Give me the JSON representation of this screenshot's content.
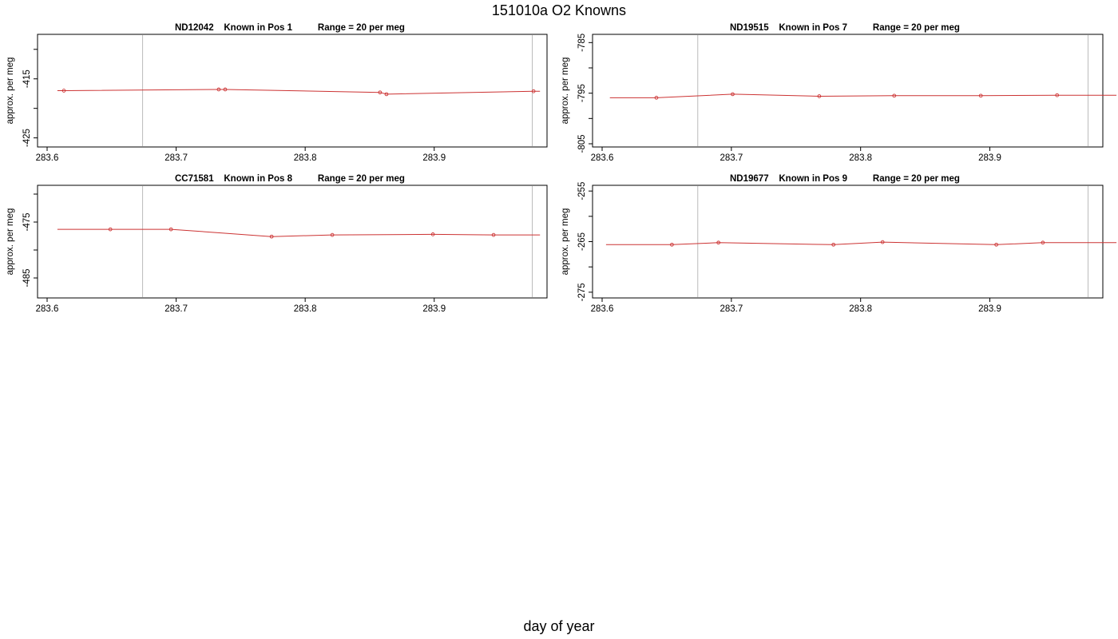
{
  "title": "151010a   O2 Knowns",
  "xlabel": "day of year",
  "colors": {
    "line": "#cc3333",
    "frame": "#000000",
    "vline": "#bbbbbb"
  },
  "chart_data": [
    {
      "type": "line",
      "title": "ND12042    Known in Pos 1          Range = 20 per meg",
      "ylabel": "approx. per meg",
      "xlim": [
        283.6,
        283.98
      ],
      "ylim": [
        -426,
        -408
      ],
      "xticks": [
        283.6,
        283.7,
        283.8,
        283.9
      ],
      "xtick_labels": [
        "283.6",
        "283.7",
        "283.8",
        "283.9"
      ],
      "yticks": [
        -410,
        -415,
        -420,
        -425
      ],
      "ytick_labels": [
        "",
        "-415",
        "",
        "-425"
      ],
      "vlines": [
        283.674,
        283.976
      ],
      "series": [
        {
          "x": [
            283.608,
            283.613,
            283.733,
            283.738,
            283.858,
            283.863,
            283.977,
            283.982
          ],
          "y": [
            -417.0,
            -417.0,
            -416.8,
            -416.8,
            -417.3,
            -417.6,
            -417.1,
            -417.1
          ],
          "markers": [
            false,
            true,
            true,
            true,
            true,
            true,
            true,
            false
          ]
        }
      ]
    },
    {
      "type": "line",
      "title": "ND19515    Known in Pos 7          Range = 20 per meg",
      "ylabel": "approx. per meg",
      "xlim": [
        283.6,
        283.98
      ],
      "ylim": [
        -805,
        -784
      ],
      "xticks": [
        283.6,
        283.7,
        283.8,
        283.9
      ],
      "xtick_labels": [
        "283.6",
        "283.7",
        "283.8",
        "283.9"
      ],
      "yticks": [
        -785,
        -790,
        -795,
        -800,
        -805
      ],
      "ytick_labels": [
        "-785",
        "",
        "-795",
        "",
        "-805"
      ],
      "vlines": [
        283.674,
        283.976
      ],
      "series": [
        {
          "x": [
            283.606,
            283.642,
            283.701,
            283.768,
            283.826,
            283.893,
            283.952,
            283.998
          ],
          "y": [
            -795.9,
            -795.9,
            -795.2,
            -795.6,
            -795.5,
            -795.5,
            -795.4,
            -795.4
          ],
          "markers": [
            false,
            true,
            true,
            true,
            true,
            true,
            true,
            false
          ]
        }
      ]
    },
    {
      "type": "line",
      "title": "CC71581    Known in Pos 8          Range = 20 per meg",
      "ylabel": "approx. per meg",
      "xlim": [
        283.6,
        283.98
      ],
      "ylim": [
        -488,
        -469
      ],
      "xticks": [
        283.6,
        283.7,
        283.8,
        283.9
      ],
      "xtick_labels": [
        "283.6",
        "283.7",
        "283.8",
        "283.9"
      ],
      "yticks": [
        -470,
        -475,
        -480,
        -485
      ],
      "ytick_labels": [
        "",
        "-475",
        "",
        "-485"
      ],
      "vlines": [
        283.674,
        283.976
      ],
      "series": [
        {
          "x": [
            283.608,
            283.649,
            283.696,
            283.774,
            283.821,
            283.899,
            283.946,
            283.982
          ],
          "y": [
            -476.3,
            -476.3,
            -476.3,
            -477.6,
            -477.3,
            -477.2,
            -477.3,
            -477.3
          ],
          "markers": [
            false,
            true,
            true,
            true,
            true,
            true,
            true,
            false
          ]
        }
      ]
    },
    {
      "type": "line",
      "title": "ND19677    Known in Pos 9          Range = 20 per meg",
      "ylabel": "approx. per meg",
      "xlim": [
        283.6,
        283.98
      ],
      "ylim": [
        -275.5,
        -254.5
      ],
      "xticks": [
        283.6,
        283.7,
        283.8,
        283.9
      ],
      "xtick_labels": [
        "283.6",
        "283.7",
        "283.8",
        "283.9"
      ],
      "yticks": [
        -255,
        -260,
        -265,
        -270,
        -275
      ],
      "ytick_labels": [
        "-255",
        "",
        "-265",
        "",
        "-275"
      ],
      "vlines": [
        283.674,
        283.976
      ],
      "series": [
        {
          "x": [
            283.603,
            283.654,
            283.69,
            283.779,
            283.817,
            283.905,
            283.941,
            283.998
          ],
          "y": [
            -265.6,
            -265.6,
            -265.2,
            -265.6,
            -265.1,
            -265.6,
            -265.2,
            -265.2
          ],
          "markers": [
            false,
            true,
            true,
            true,
            true,
            true,
            true,
            false
          ]
        }
      ]
    }
  ]
}
